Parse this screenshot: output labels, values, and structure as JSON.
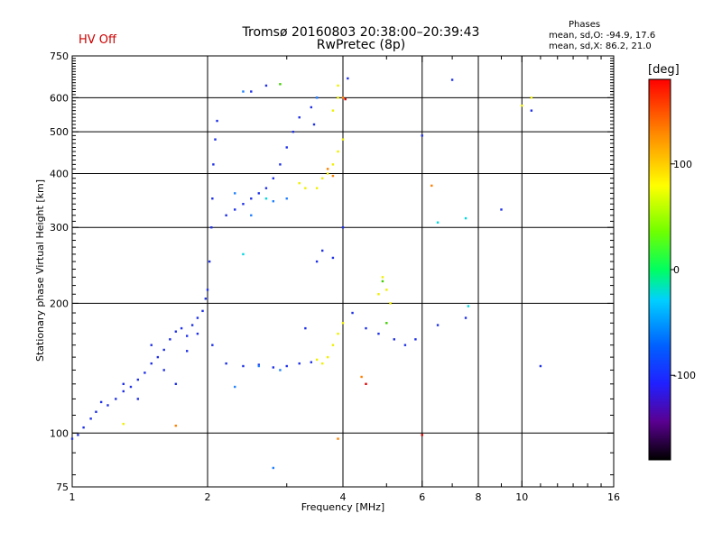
{
  "header": {
    "title_line1": "Tromsø 20160803 20:38:00–20:39:43",
    "title_line2": "RwPretec (8p)",
    "hv_status": "HV Off",
    "stats_title": "Phases",
    "stats_o": "mean, sd,O: -94.9, 17.6",
    "stats_x": "mean, sd,X: 86.2, 21.0"
  },
  "chart_data": {
    "type": "scatter",
    "xlabel": "Frequency [MHz]",
    "ylabel": "Stationary phase Virtual Height [km]",
    "xscale": "log",
    "yscale": "log",
    "xlim": [
      1,
      16
    ],
    "ylim": [
      75,
      750
    ],
    "x_ticks": [
      1,
      2,
      4,
      6,
      8,
      10,
      16
    ],
    "x_tick_labels": [
      "1",
      "2",
      "4",
      "6",
      "8",
      "10",
      "16"
    ],
    "y_ticks": [
      75,
      100,
      200,
      300,
      400,
      500,
      600,
      750
    ],
    "y_tick_labels": [
      "75",
      "100",
      "200",
      "300",
      "400",
      "500",
      "600",
      "750"
    ],
    "x_gridlines": [
      2,
      4,
      6,
      8,
      10
    ],
    "y_gridlines": [
      100,
      200,
      300,
      400,
      500,
      600
    ],
    "grid": true,
    "colorbar": {
      "label": "[deg]",
      "min": -180,
      "max": 180,
      "ticks": [
        100,
        0,
        -100
      ],
      "tick_labels": [
        "100",
        "0",
        "-100"
      ]
    },
    "series": [
      {
        "color": "#1e30e8",
        "phase": -100,
        "points": [
          [
            1.0,
            97
          ],
          [
            1.03,
            99
          ],
          [
            1.06,
            103
          ],
          [
            1.1,
            108
          ],
          [
            1.13,
            112
          ],
          [
            1.16,
            118
          ],
          [
            1.2,
            116
          ],
          [
            1.25,
            120
          ],
          [
            1.3,
            125
          ],
          [
            1.35,
            128
          ],
          [
            1.4,
            133
          ],
          [
            1.45,
            138
          ],
          [
            1.5,
            145
          ],
          [
            1.55,
            150
          ],
          [
            1.6,
            156
          ],
          [
            1.65,
            165
          ],
          [
            1.7,
            172
          ],
          [
            1.75,
            175
          ],
          [
            1.8,
            168
          ],
          [
            1.85,
            178
          ],
          [
            1.9,
            185
          ],
          [
            1.95,
            192
          ],
          [
            1.98,
            205
          ],
          [
            2.0,
            215
          ],
          [
            2.02,
            250
          ],
          [
            2.04,
            300
          ],
          [
            2.05,
            350
          ],
          [
            2.06,
            420
          ],
          [
            2.08,
            480
          ],
          [
            2.1,
            530
          ],
          [
            2.2,
            320
          ],
          [
            2.3,
            330
          ],
          [
            2.4,
            340
          ],
          [
            2.5,
            350
          ],
          [
            2.6,
            360
          ],
          [
            2.7,
            370
          ],
          [
            2.8,
            390
          ],
          [
            2.9,
            420
          ],
          [
            3.0,
            460
          ],
          [
            3.1,
            500
          ],
          [
            3.2,
            540
          ],
          [
            3.4,
            570
          ],
          [
            3.5,
            600
          ],
          [
            3.45,
            520
          ],
          [
            2.05,
            160
          ],
          [
            2.2,
            145
          ],
          [
            2.4,
            143
          ],
          [
            2.6,
            144
          ],
          [
            2.8,
            142
          ],
          [
            3.0,
            143
          ],
          [
            3.2,
            145
          ],
          [
            3.4,
            146
          ],
          [
            3.3,
            175
          ],
          [
            3.5,
            250
          ],
          [
            3.6,
            265
          ],
          [
            3.8,
            255
          ],
          [
            4.2,
            190
          ],
          [
            4.5,
            175
          ],
          [
            4.8,
            170
          ],
          [
            5.2,
            165
          ],
          [
            5.5,
            160
          ],
          [
            5.8,
            165
          ],
          [
            6.5,
            178
          ],
          [
            7.5,
            185
          ],
          [
            11.0,
            143
          ],
          [
            1.5,
            160
          ],
          [
            1.6,
            140
          ],
          [
            1.7,
            130
          ],
          [
            1.8,
            155
          ],
          [
            1.9,
            170
          ],
          [
            1.4,
            120
          ],
          [
            1.3,
            130
          ],
          [
            2.5,
            620
          ],
          [
            2.7,
            640
          ],
          [
            4.0,
            300
          ],
          [
            6.0,
            490
          ],
          [
            7.0,
            660
          ],
          [
            10.5,
            560
          ],
          [
            9.0,
            330
          ],
          [
            4.1,
            665
          ]
        ]
      },
      {
        "color": "#2080ff",
        "phase": -70,
        "points": [
          [
            2.3,
            360
          ],
          [
            2.5,
            320
          ],
          [
            2.8,
            345
          ],
          [
            3.0,
            350
          ],
          [
            2.6,
            143
          ],
          [
            2.9,
            140
          ],
          [
            2.3,
            128
          ],
          [
            3.5,
            600
          ],
          [
            2.4,
            620
          ],
          [
            2.8,
            83
          ]
        ]
      },
      {
        "color": "#00d8e0",
        "phase": -20,
        "points": [
          [
            2.4,
            260
          ],
          [
            2.7,
            350
          ],
          [
            6.5,
            308
          ],
          [
            7.5,
            315
          ],
          [
            7.6,
            197
          ]
        ]
      },
      {
        "color": "#40d000",
        "phase": 20,
        "points": [
          [
            2.9,
            645
          ],
          [
            4.9,
            225
          ],
          [
            5.0,
            180
          ]
        ]
      },
      {
        "color": "#f0f000",
        "phase": 100,
        "points": [
          [
            3.6,
            390
          ],
          [
            3.7,
            400
          ],
          [
            3.8,
            420
          ],
          [
            3.9,
            450
          ],
          [
            4.0,
            480
          ],
          [
            3.5,
            370
          ],
          [
            3.8,
            560
          ],
          [
            3.9,
            600
          ],
          [
            3.7,
            150
          ],
          [
            3.8,
            160
          ],
          [
            3.9,
            170
          ],
          [
            4.0,
            180
          ],
          [
            3.6,
            145
          ],
          [
            3.5,
            148
          ],
          [
            4.8,
            210
          ],
          [
            4.9,
            230
          ],
          [
            5.0,
            215
          ],
          [
            5.1,
            200
          ],
          [
            3.2,
            380
          ],
          [
            3.3,
            370
          ],
          [
            3.9,
            640
          ],
          [
            10.0,
            575
          ],
          [
            10.5,
            600
          ],
          [
            1.3,
            105
          ]
        ]
      },
      {
        "color": "#ff8000",
        "phase": 150,
        "points": [
          [
            3.7,
            410
          ],
          [
            3.8,
            395
          ],
          [
            6.3,
            375
          ],
          [
            4.4,
            135
          ],
          [
            1.7,
            104
          ],
          [
            3.9,
            97
          ],
          [
            4.0,
            600
          ]
        ]
      },
      {
        "color": "#e00000",
        "phase": 175,
        "points": [
          [
            4.5,
            130
          ],
          [
            6.0,
            99
          ],
          [
            4.05,
            595
          ]
        ]
      }
    ]
  }
}
